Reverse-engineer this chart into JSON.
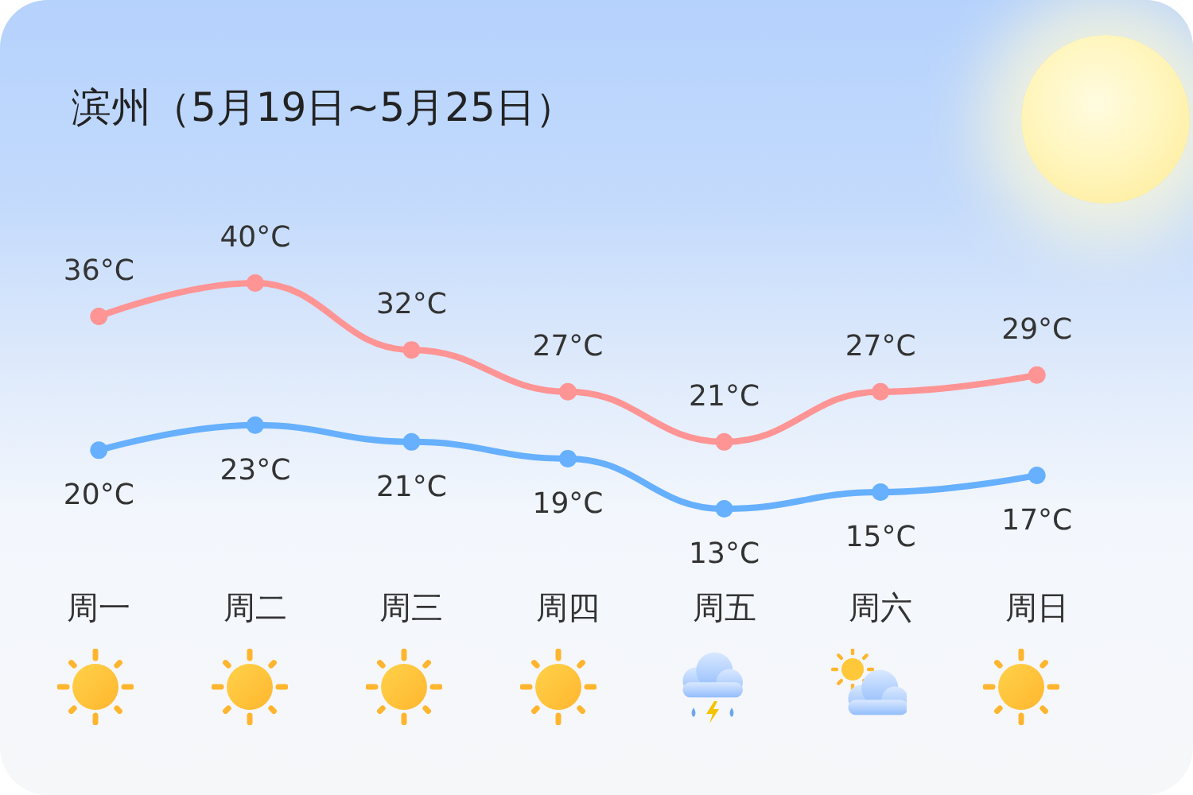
{
  "chart_data": {
    "type": "line",
    "title": "滨州（5月19日~5月25日）",
    "categories": [
      "周一",
      "周二",
      "周三",
      "周四",
      "周五",
      "周六",
      "周日"
    ],
    "series": [
      {
        "color": "#ff9494",
        "values": [
          36,
          40,
          32,
          27,
          21,
          27,
          29
        ],
        "value_labels": [
          "36°C",
          "40°C",
          "32°C",
          "27°C",
          "21°C",
          "27°C",
          "29°C"
        ]
      },
      {
        "color": "#66b0ff",
        "values": [
          20,
          23,
          21,
          19,
          13,
          15,
          17
        ],
        "value_labels": [
          "20°C",
          "23°C",
          "21°C",
          "19°C",
          "13°C",
          "15°C",
          "17°C"
        ]
      }
    ],
    "marker": "circle"
  }
}
